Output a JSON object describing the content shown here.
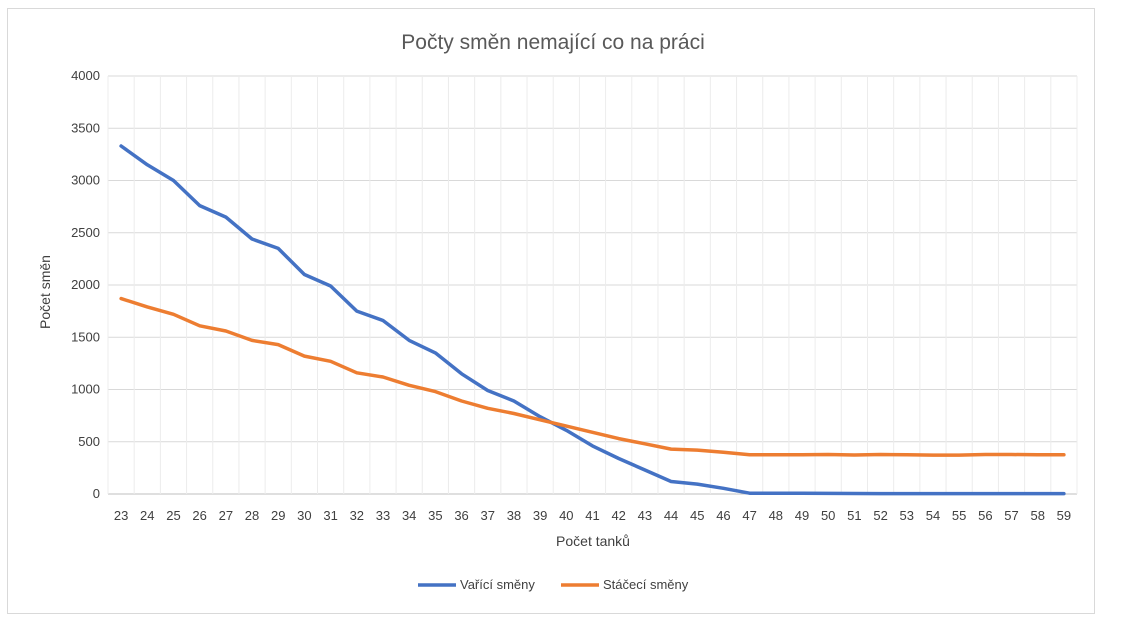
{
  "chart_data": {
    "type": "line",
    "title": "Počty směn nemající co na práci",
    "xlabel": "Počet tanků",
    "ylabel": "Počet směn",
    "ylim": [
      0,
      4000
    ],
    "yticks": [
      0,
      500,
      1000,
      1500,
      2000,
      2500,
      3000,
      3500,
      4000
    ],
    "grid": true,
    "legend_position": "bottom",
    "x": [
      23,
      24,
      25,
      26,
      27,
      28,
      29,
      30,
      31,
      32,
      33,
      34,
      35,
      36,
      37,
      38,
      39,
      40,
      41,
      42,
      43,
      44,
      45,
      46,
      47,
      48,
      49,
      50,
      51,
      52,
      53,
      54,
      55,
      56,
      57,
      58,
      59
    ],
    "series": [
      {
        "name": "Vařící směny",
        "color": "#4472c4",
        "values": [
          3330,
          3150,
          3000,
          2760,
          2650,
          2440,
          2350,
          2100,
          1990,
          1750,
          1660,
          1470,
          1350,
          1150,
          990,
          890,
          740,
          610,
          460,
          340,
          230,
          120,
          95,
          55,
          8,
          8,
          8,
          6,
          5,
          4,
          4,
          4,
          4,
          4,
          4,
          4,
          4
        ]
      },
      {
        "name": "Stáčecí směny",
        "color": "#ed7d31",
        "values": [
          1870,
          1790,
          1720,
          1610,
          1560,
          1470,
          1430,
          1320,
          1270,
          1160,
          1120,
          1040,
          980,
          890,
          820,
          770,
          710,
          650,
          590,
          530,
          480,
          430,
          420,
          400,
          375,
          375,
          375,
          378,
          373,
          378,
          375,
          372,
          372,
          378,
          378,
          375,
          375
        ]
      }
    ]
  }
}
